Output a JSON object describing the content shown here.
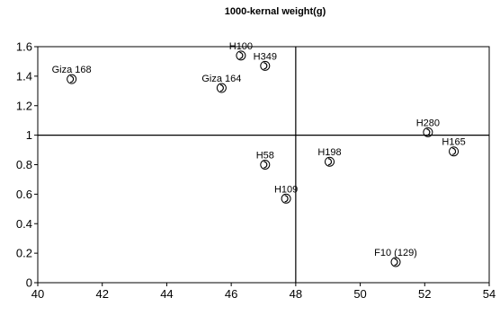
{
  "chart_data": {
    "type": "scatter",
    "title": "1000-kernal weight(g)",
    "xlabel": "",
    "ylabel": "",
    "xlim": [
      40,
      54
    ],
    "ylim": [
      0,
      1.6
    ],
    "x_ticks": [
      "40",
      "42",
      "44",
      "46",
      "48",
      "50",
      "52",
      "54"
    ],
    "y_ticks": [
      "0",
      "0.2",
      "0.4",
      "0.6",
      "0.8",
      "1",
      "1.2",
      "1.4",
      "1.6"
    ],
    "reference_lines": {
      "x": 48,
      "y": 1
    },
    "grid": false,
    "points": [
      {
        "label": "Giza 168",
        "x": 41.05,
        "y": 1.38
      },
      {
        "label": "H100",
        "x": 46.3,
        "y": 1.54
      },
      {
        "label": "H349",
        "x": 47.05,
        "y": 1.47
      },
      {
        "label": "Giza 164",
        "x": 45.7,
        "y": 1.32
      },
      {
        "label": "H280",
        "x": 52.1,
        "y": 1.02
      },
      {
        "label": "H165",
        "x": 52.9,
        "y": 0.89
      },
      {
        "label": "H58",
        "x": 47.05,
        "y": 0.8
      },
      {
        "label": "H198",
        "x": 49.05,
        "y": 0.82
      },
      {
        "label": "H109",
        "x": 47.7,
        "y": 0.57
      },
      {
        "label": "F10 (129)",
        "x": 51.1,
        "y": 0.14
      }
    ],
    "colors": {
      "marker": "#000000",
      "axis": "#000000",
      "background": "#ffffff"
    }
  }
}
